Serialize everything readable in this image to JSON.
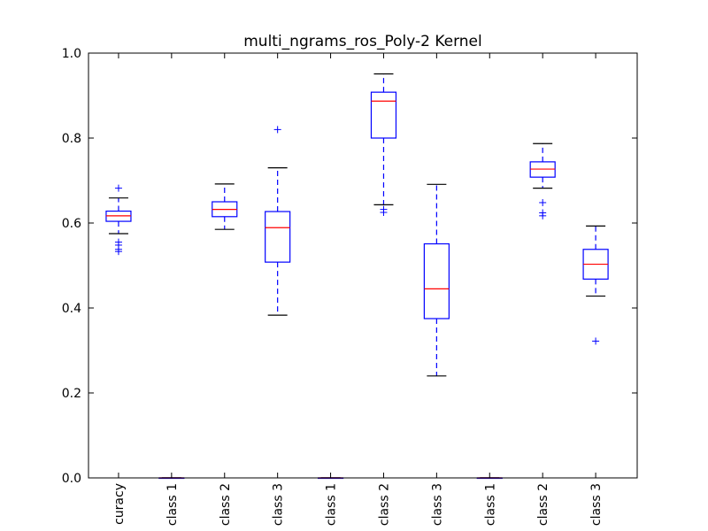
{
  "chart_data": {
    "type": "boxplot",
    "title": "multi_ngrams_ros_Poly-2 Kernel",
    "xlabel": "",
    "ylabel": "",
    "ylim": [
      0.0,
      1.0
    ],
    "yticks": [
      "0.0",
      "0.2",
      "0.4",
      "0.6",
      "0.8",
      "1.0"
    ],
    "grid": false,
    "legend": "none",
    "categories": [
      "curacy",
      "class 1",
      "class 2",
      "class 3",
      "class 1",
      "class 2",
      "class 3",
      "class 1",
      "class 2",
      "class 3"
    ],
    "colors": {
      "box": "#0000ff",
      "median": "#ff0000",
      "whisker_cap": "#000000",
      "axes": "#000000"
    },
    "boxes": [
      {
        "whislo": 0.575,
        "q1": 0.604,
        "med": 0.617,
        "q3": 0.628,
        "whishi": 0.659,
        "fliers": [
          0.682,
          0.555,
          0.548,
          0.538,
          0.533
        ]
      },
      {
        "whislo": 0.0,
        "q1": 0.0,
        "med": 0.0,
        "q3": 0.0,
        "whishi": 0.0,
        "fliers": []
      },
      {
        "whislo": 0.585,
        "q1": 0.615,
        "med": 0.632,
        "q3": 0.65,
        "whishi": 0.692,
        "fliers": []
      },
      {
        "whislo": 0.383,
        "q1": 0.508,
        "med": 0.589,
        "q3": 0.627,
        "whishi": 0.73,
        "fliers": [
          0.82
        ]
      },
      {
        "whislo": 0.0,
        "q1": 0.0,
        "med": 0.0,
        "q3": 0.0,
        "whishi": 0.0,
        "fliers": []
      },
      {
        "whislo": 0.643,
        "q1": 0.8,
        "med": 0.887,
        "q3": 0.908,
        "whishi": 0.951,
        "fliers": [
          0.632,
          0.625
        ]
      },
      {
        "whislo": 0.24,
        "q1": 0.375,
        "med": 0.445,
        "q3": 0.551,
        "whishi": 0.691,
        "fliers": []
      },
      {
        "whislo": 0.0,
        "q1": 0.0,
        "med": 0.0,
        "q3": 0.0,
        "whishi": 0.0,
        "fliers": []
      },
      {
        "whislo": 0.682,
        "q1": 0.708,
        "med": 0.727,
        "q3": 0.744,
        "whishi": 0.787,
        "fliers": [
          0.648,
          0.624,
          0.617
        ]
      },
      {
        "whislo": 0.428,
        "q1": 0.468,
        "med": 0.503,
        "q3": 0.538,
        "whishi": 0.593,
        "fliers": [
          0.322
        ]
      }
    ]
  }
}
